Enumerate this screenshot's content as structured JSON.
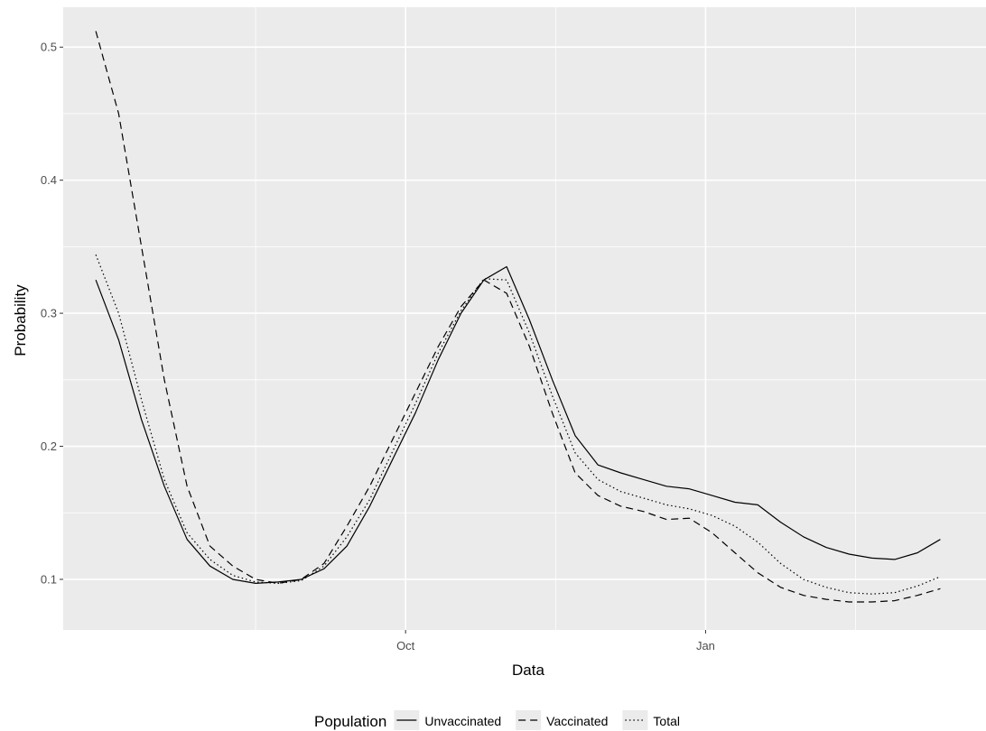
{
  "chart_data": {
    "type": "line",
    "xlabel": "Data",
    "ylabel": "Probability",
    "x_ticks": [
      {
        "label": "Oct",
        "date": "2021-10-01"
      },
      {
        "label": "Jan",
        "date": "2022-01-01"
      }
    ],
    "y_ticks": [
      0.1,
      0.2,
      0.3,
      0.4,
      0.5
    ],
    "xlim": [
      "2021-06-18",
      "2022-03-28"
    ],
    "ylim": [
      0.062,
      0.53
    ],
    "grid": true,
    "background": "#ebebeb",
    "legend": {
      "title": "Population",
      "position": "bottom",
      "entries": [
        "Unvaccinated",
        "Vaccinated",
        "Total"
      ]
    },
    "x": [
      "2021-06-28",
      "2021-07-05",
      "2021-07-12",
      "2021-07-19",
      "2021-07-26",
      "2021-08-02",
      "2021-08-09",
      "2021-08-16",
      "2021-08-23",
      "2021-08-30",
      "2021-09-06",
      "2021-09-13",
      "2021-09-20",
      "2021-09-27",
      "2021-10-04",
      "2021-10-11",
      "2021-10-18",
      "2021-10-25",
      "2021-11-01",
      "2021-11-08",
      "2021-11-15",
      "2021-11-22",
      "2021-11-29",
      "2021-12-06",
      "2021-12-13",
      "2021-12-20",
      "2021-12-27",
      "2022-01-03",
      "2022-01-10",
      "2022-01-17",
      "2022-01-24",
      "2022-01-31",
      "2022-02-07",
      "2022-02-14",
      "2022-02-21",
      "2022-02-28",
      "2022-03-07",
      "2022-03-14"
    ],
    "series": [
      {
        "name": "Unvaccinated",
        "line": "solid",
        "values": [
          0.325,
          0.28,
          0.22,
          0.17,
          0.13,
          0.11,
          0.1,
          0.097,
          0.098,
          0.1,
          0.108,
          0.125,
          0.155,
          0.19,
          0.225,
          0.265,
          0.3,
          0.325,
          0.335,
          0.295,
          0.25,
          0.208,
          0.186,
          0.18,
          0.175,
          0.17,
          0.168,
          0.163,
          0.158,
          0.156,
          0.143,
          0.132,
          0.124,
          0.119,
          0.116,
          0.115,
          0.12,
          0.13
        ]
      },
      {
        "name": "Vaccinated",
        "line": "dashed",
        "values": [
          0.512,
          0.45,
          0.35,
          0.25,
          0.17,
          0.125,
          0.11,
          0.1,
          0.097,
          0.1,
          0.112,
          0.14,
          0.17,
          0.205,
          0.24,
          0.275,
          0.305,
          0.325,
          0.315,
          0.275,
          0.225,
          0.18,
          0.163,
          0.155,
          0.151,
          0.145,
          0.146,
          0.135,
          0.12,
          0.105,
          0.094,
          0.088,
          0.085,
          0.083,
          0.083,
          0.084,
          0.088,
          0.093
        ]
      },
      {
        "name": "Total",
        "line": "dotted",
        "values": [
          0.344,
          0.3,
          0.235,
          0.175,
          0.135,
          0.115,
          0.103,
          0.098,
          0.097,
          0.099,
          0.11,
          0.132,
          0.16,
          0.196,
          0.232,
          0.27,
          0.302,
          0.326,
          0.325,
          0.285,
          0.238,
          0.195,
          0.175,
          0.166,
          0.161,
          0.156,
          0.153,
          0.148,
          0.14,
          0.128,
          0.112,
          0.1,
          0.094,
          0.09,
          0.089,
          0.09,
          0.095,
          0.102
        ]
      }
    ]
  }
}
